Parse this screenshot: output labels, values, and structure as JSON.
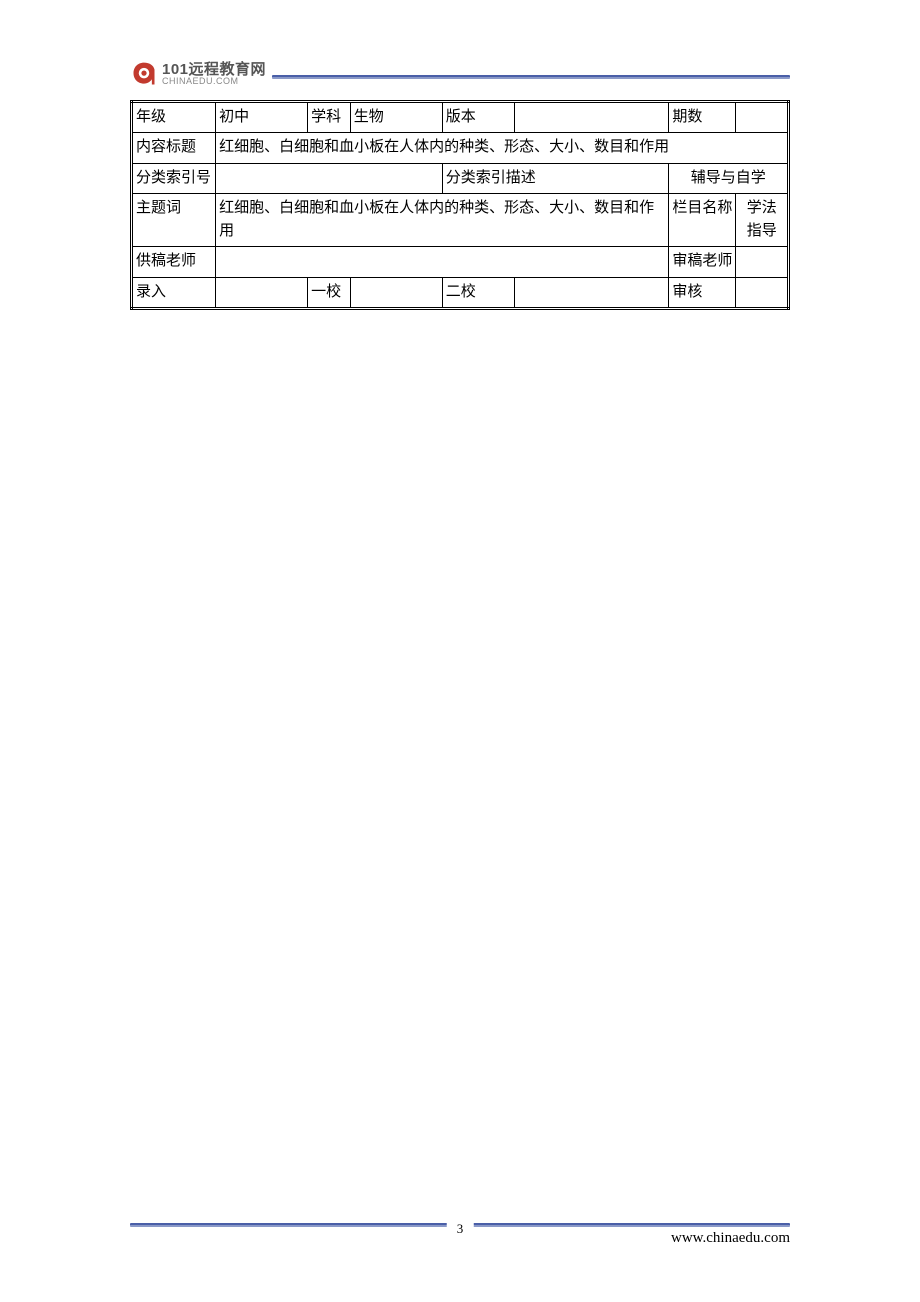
{
  "logo": {
    "title": "101远程教育网",
    "subtitle": "CHINAEDU.COM",
    "icon_fill": "#c23a2e",
    "icon_inner": "#ffffff"
  },
  "colors": {
    "header_line_top": "#4a5fa8",
    "header_line_bottom": "#8a99c8",
    "border": "#000000",
    "text": "#000000",
    "background": "#ffffff"
  },
  "table": {
    "rows": [
      {
        "cells": [
          {
            "text": "年级",
            "width": "12.8%"
          },
          {
            "text": "初中",
            "width": "14%"
          },
          {
            "text": "学科",
            "width": "6.5%"
          },
          {
            "text": "生物",
            "width": "14%"
          },
          {
            "text": "版本",
            "width": "11%"
          },
          {
            "text": "",
            "width": "23.5%"
          },
          {
            "text": "期数",
            "width": "10.2%"
          },
          {
            "text": "",
            "width": "8%"
          }
        ]
      },
      {
        "cells": [
          {
            "text": "内容标题"
          },
          {
            "text": "红细胞、白细胞和血小板在人体内的种类、形态、大小、数目和作用",
            "colspan": 7
          }
        ]
      },
      {
        "cells": [
          {
            "text": "分类索引号"
          },
          {
            "text": "",
            "colspan": 3
          },
          {
            "text": "分类索引描述",
            "colspan": 2
          },
          {
            "text": "辅导与自学",
            "colspan": 2,
            "align": "center"
          }
        ]
      },
      {
        "cells": [
          {
            "text": "主题词"
          },
          {
            "text": "红细胞、白细胞和血小板在人体内的种类、形态、大小、数目和作用",
            "colspan": 5
          },
          {
            "text": "栏目名称"
          },
          {
            "text": "学法指导",
            "align": "center"
          }
        ]
      },
      {
        "cells": [
          {
            "text": "供稿老师"
          },
          {
            "text": "",
            "colspan": 5
          },
          {
            "text": "审稿老师"
          },
          {
            "text": ""
          }
        ]
      },
      {
        "cells": [
          {
            "text": "录入"
          },
          {
            "text": ""
          },
          {
            "text": "一校"
          },
          {
            "text": ""
          },
          {
            "text": "二校"
          },
          {
            "text": ""
          },
          {
            "text": "审核"
          },
          {
            "text": ""
          }
        ]
      }
    ]
  },
  "footer": {
    "page_number": "3",
    "url": "www.chinaedu.com"
  }
}
